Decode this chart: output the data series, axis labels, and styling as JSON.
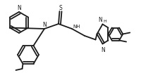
{
  "bg_color": "#ffffff",
  "line_color": "#1a1a1a",
  "lw": 1.3,
  "figsize": [
    2.0,
    1.15
  ],
  "dpi": 100,
  "xlim": [
    0,
    2.0
  ],
  "ylim": [
    0,
    1.15
  ]
}
